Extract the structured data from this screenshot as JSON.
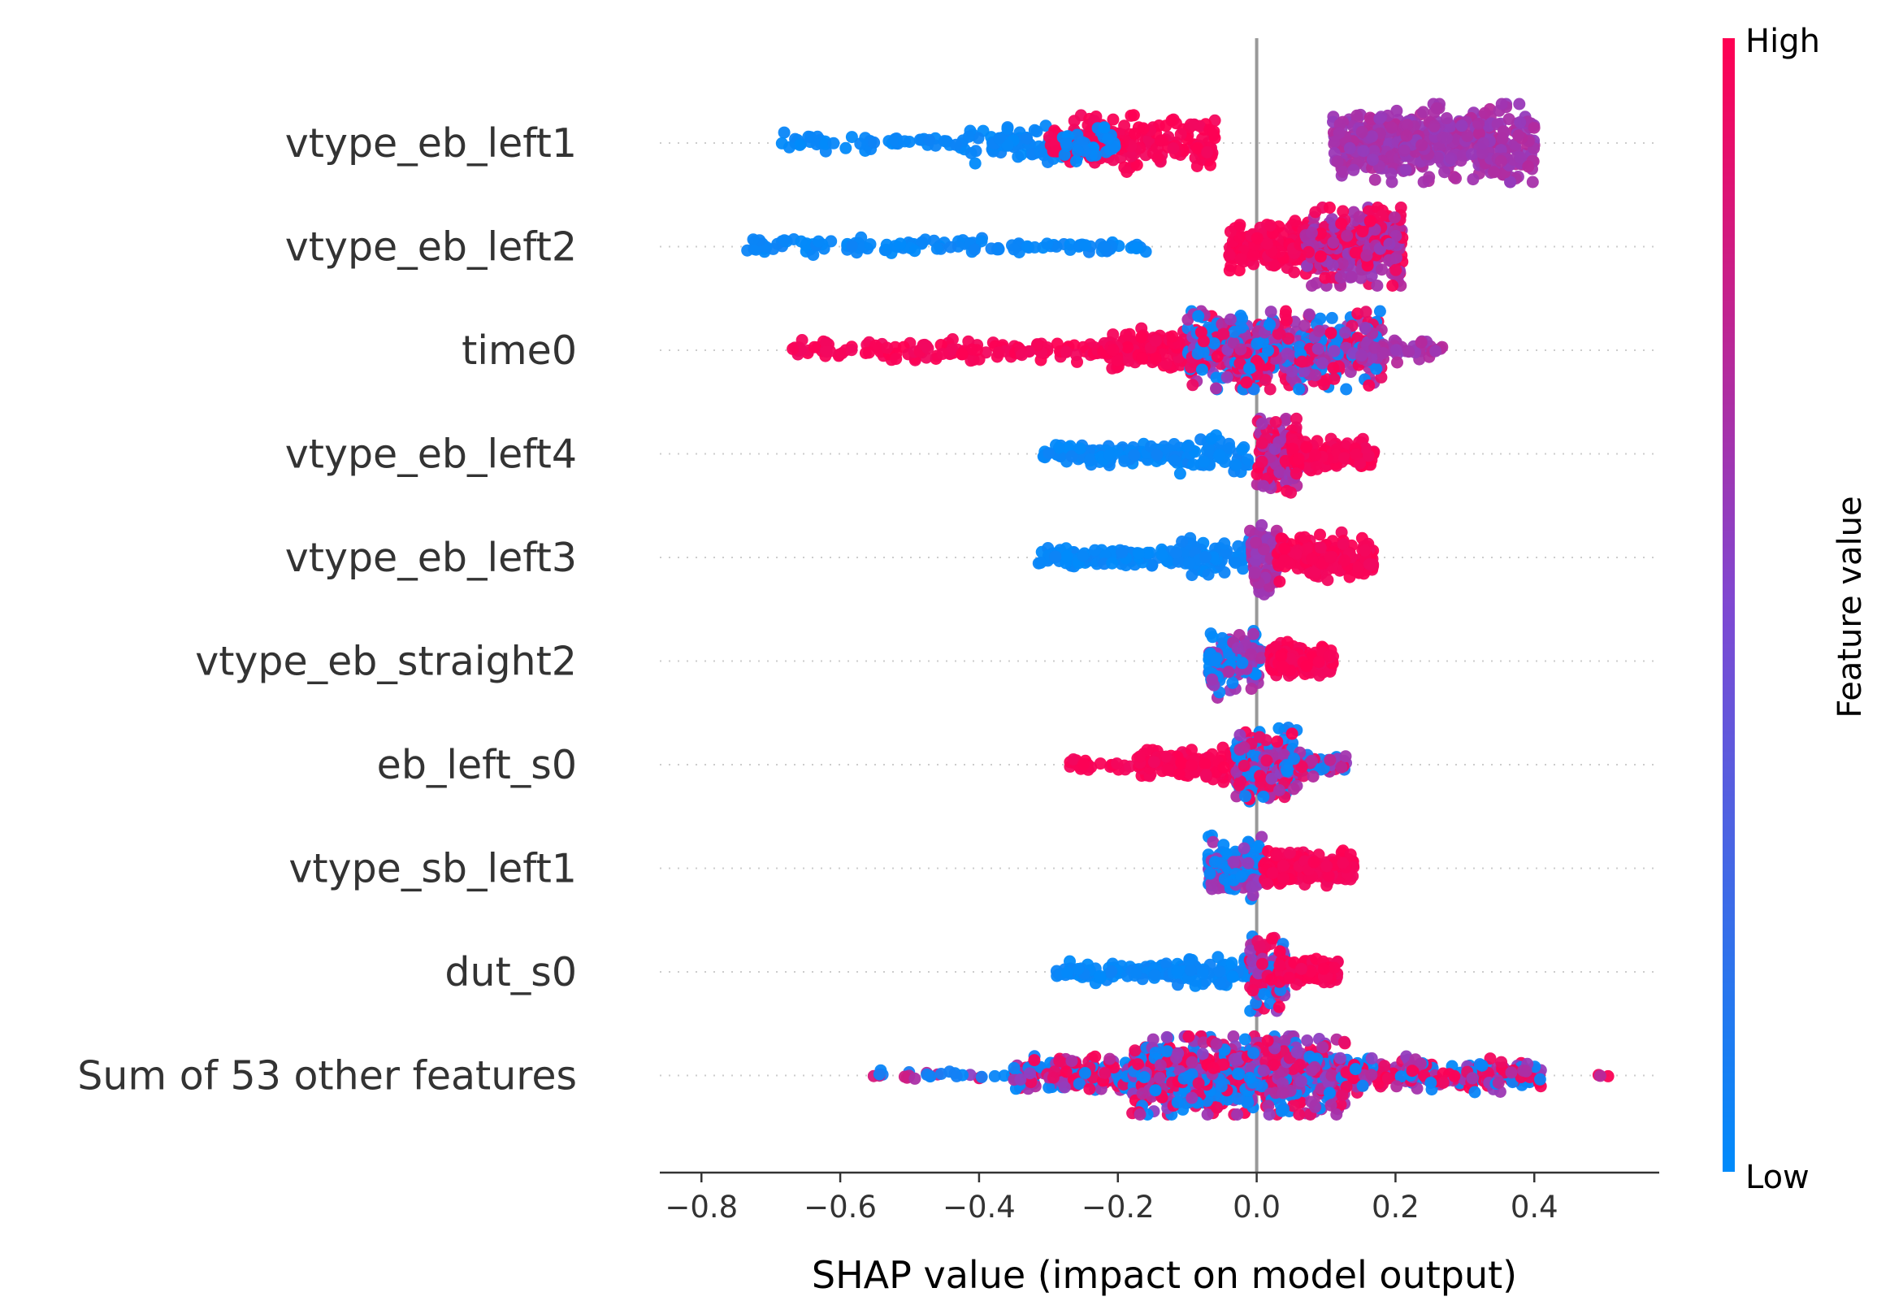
{
  "chart_data": {
    "type": "scatter",
    "subtype": "shap-beeswarm-summary",
    "xlabel": "SHAP value (impact on model output)",
    "xlim": [
      -0.86,
      0.58
    ],
    "xticks": [
      -0.8,
      -0.6,
      -0.4,
      -0.2,
      0.0,
      0.2,
      0.4
    ],
    "xtick_labels": [
      "−0.8",
      "−0.6",
      "−0.4",
      "−0.2",
      "0.0",
      "0.2",
      "0.4"
    ],
    "zero_line": 0.0,
    "colorbar": {
      "title": "Feature value",
      "high_label": "High",
      "low_label": "Low",
      "low_color": "#008bfb",
      "high_color": "#ff0052"
    },
    "features": [
      {
        "name": "vtype_eb_left1",
        "seed": 11,
        "segments": [
          {
            "from": -0.7,
            "to": -0.42,
            "count": 55,
            "spread": 0.3,
            "color": "low"
          },
          {
            "from": -0.42,
            "to": -0.22,
            "count": 120,
            "spread": 0.55,
            "color": "low"
          },
          {
            "from": -0.3,
            "to": -0.06,
            "count": 200,
            "spread": 0.95,
            "color": "high"
          },
          {
            "from": -0.28,
            "to": -0.2,
            "count": 30,
            "spread": 0.7,
            "color": "low"
          },
          {
            "from": 0.11,
            "to": 0.21,
            "count": 180,
            "spread": 1.1,
            "color": "mid"
          },
          {
            "from": 0.21,
            "to": 0.4,
            "count": 300,
            "spread": 1.35,
            "color": "mid"
          }
        ]
      },
      {
        "name": "vtype_eb_left2",
        "seed": 23,
        "segments": [
          {
            "from": -0.74,
            "to": -0.35,
            "count": 90,
            "spread": 0.32,
            "color": "low"
          },
          {
            "from": -0.35,
            "to": -0.15,
            "count": 40,
            "spread": 0.22,
            "color": "low"
          },
          {
            "from": -0.04,
            "to": 0.08,
            "count": 150,
            "spread": 0.8,
            "color": "high"
          },
          {
            "from": 0.07,
            "to": 0.21,
            "count": 300,
            "spread": 1.35,
            "color": "mixhigh"
          }
        ]
      },
      {
        "name": "time0",
        "seed": 37,
        "segments": [
          {
            "from": -0.67,
            "to": -0.15,
            "count": 170,
            "spread": 0.35,
            "color": "high"
          },
          {
            "from": -0.22,
            "to": -0.08,
            "count": 110,
            "spread": 0.75,
            "color": "high"
          },
          {
            "from": -0.1,
            "to": 0.18,
            "count": 520,
            "spread": 1.35,
            "color": "mixall"
          },
          {
            "from": 0.15,
            "to": 0.27,
            "count": 50,
            "spread": 0.45,
            "color": "mid"
          }
        ]
      },
      {
        "name": "vtype_eb_left4",
        "seed": 41,
        "segments": [
          {
            "from": -0.31,
            "to": -0.1,
            "count": 120,
            "spread": 0.35,
            "color": "low"
          },
          {
            "from": -0.12,
            "to": -0.01,
            "count": 60,
            "spread": 0.55,
            "color": "low"
          },
          {
            "from": 0.0,
            "to": 0.06,
            "count": 140,
            "spread": 1.25,
            "color": "mixhigh"
          },
          {
            "from": 0.05,
            "to": 0.17,
            "count": 130,
            "spread": 0.55,
            "color": "high"
          }
        ]
      },
      {
        "name": "vtype_eb_left3",
        "seed": 53,
        "segments": [
          {
            "from": -0.32,
            "to": -0.1,
            "count": 120,
            "spread": 0.3,
            "color": "low"
          },
          {
            "from": -0.12,
            "to": -0.01,
            "count": 70,
            "spread": 0.65,
            "color": "low"
          },
          {
            "from": -0.01,
            "to": 0.03,
            "count": 90,
            "spread": 1.35,
            "color": "mid"
          },
          {
            "from": 0.03,
            "to": 0.17,
            "count": 180,
            "spread": 0.75,
            "color": "high"
          }
        ]
      },
      {
        "name": "vtype_eb_straight2",
        "seed": 67,
        "segments": [
          {
            "from": -0.07,
            "to": 0.01,
            "count": 130,
            "spread": 1.05,
            "color": "lowmid"
          },
          {
            "from": 0.02,
            "to": 0.11,
            "count": 160,
            "spread": 0.55,
            "color": "high"
          }
        ]
      },
      {
        "name": "eb_left_s0",
        "seed": 71,
        "segments": [
          {
            "from": -0.27,
            "to": -0.17,
            "count": 25,
            "spread": 0.25,
            "color": "high"
          },
          {
            "from": -0.17,
            "to": -0.01,
            "count": 140,
            "spread": 0.55,
            "color": "high"
          },
          {
            "from": -0.03,
            "to": 0.06,
            "count": 170,
            "spread": 1.25,
            "color": "mixall"
          },
          {
            "from": 0.04,
            "to": 0.13,
            "count": 60,
            "spread": 0.4,
            "color": "mixlow"
          }
        ]
      },
      {
        "name": "vtype_sb_left1",
        "seed": 83,
        "segments": [
          {
            "from": -0.07,
            "to": 0.01,
            "count": 130,
            "spread": 1.05,
            "color": "lowmid"
          },
          {
            "from": 0.01,
            "to": 0.14,
            "count": 170,
            "spread": 0.55,
            "color": "high"
          }
        ]
      },
      {
        "name": "dut_s0",
        "seed": 97,
        "segments": [
          {
            "from": -0.29,
            "to": -0.12,
            "count": 80,
            "spread": 0.3,
            "color": "low"
          },
          {
            "from": -0.12,
            "to": -0.01,
            "count": 70,
            "spread": 0.55,
            "color": "low"
          },
          {
            "from": -0.01,
            "to": 0.04,
            "count": 120,
            "spread": 1.25,
            "color": "mixall"
          },
          {
            "from": 0.03,
            "to": 0.12,
            "count": 110,
            "spread": 0.45,
            "color": "high"
          }
        ]
      },
      {
        "name": "Sum of 53 other features",
        "seed": 101,
        "segments": [
          {
            "from": -0.57,
            "to": -0.32,
            "count": 30,
            "spread": 0.15,
            "color": "mixlow"
          },
          {
            "from": -0.35,
            "to": -0.15,
            "count": 200,
            "spread": 0.6,
            "color": "mixall"
          },
          {
            "from": -0.18,
            "to": 0.13,
            "count": 700,
            "spread": 1.4,
            "color": "mixall"
          },
          {
            "from": 0.12,
            "to": 0.41,
            "count": 200,
            "spread": 0.55,
            "color": "mixall"
          },
          {
            "from": 0.49,
            "to": 0.52,
            "count": 3,
            "spread": 0.1,
            "color": "mixhigh"
          }
        ]
      }
    ]
  }
}
